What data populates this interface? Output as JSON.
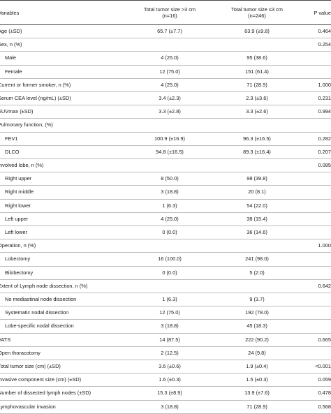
{
  "headers": {
    "variables": "Variables",
    "group1_line1": "Total tumor size >3 cm",
    "group1_line2": "(n=16)",
    "group2_line1": "Total tumor size ≤3 cm",
    "group2_line2": "(n=246)",
    "p_value": "P value"
  },
  "rows": [
    {
      "label": "Age (±SD)",
      "indent": false,
      "g1": "65.7 (±7.7)",
      "g2": "63.9 (±9.8)",
      "p": "0.464"
    },
    {
      "label": "Sex, n (%)",
      "indent": false,
      "g1": "",
      "g2": "",
      "p": "0.254"
    },
    {
      "label": "Male",
      "indent": true,
      "g1": "4 (25.0)",
      "g2": "95 (38.6)",
      "p": ""
    },
    {
      "label": "Female",
      "indent": true,
      "g1": "12 (75.0)",
      "g2": "151 (61.4)",
      "p": ""
    },
    {
      "label": "Current or former smoker, n (%)",
      "indent": false,
      "g1": "4 (25.0)",
      "g2": "71 (28.9)",
      "p": "1.000"
    },
    {
      "label": "Serum CEA level (ng/mL) (±SD)",
      "indent": false,
      "g1": "3.4 (±2.3)",
      "g2": "2.3 (±3.6)",
      "p": "0.231"
    },
    {
      "label": "SUVmax (±SD)",
      "indent": false,
      "g1": "3.3 (±2.8)",
      "g2": "3.3 (±2.6)",
      "p": "0.994"
    },
    {
      "label": "Pulmonary function, (%)",
      "indent": false,
      "g1": "",
      "g2": "",
      "p": ""
    },
    {
      "label": "FEV1",
      "indent": true,
      "g1": "100.9 (±16.9)",
      "g2": "96.3 (±16.5)",
      "p": "0.282"
    },
    {
      "label": "DLCO",
      "indent": true,
      "g1": "94.8 (±16.5)",
      "g2": "89.3 (±16.4)",
      "p": "0.207"
    },
    {
      "label": "Involved lobe, n (%)",
      "indent": false,
      "g1": "",
      "g2": "",
      "p": "0.085"
    },
    {
      "label": "Right upper",
      "indent": true,
      "g1": "8 (50.0)",
      "g2": "98 (39.8)",
      "p": ""
    },
    {
      "label": "Right middle",
      "indent": true,
      "g1": "3 (18.8)",
      "g2": "20 (8.1)",
      "p": ""
    },
    {
      "label": "Right lower",
      "indent": true,
      "g1": "1 (6.3)",
      "g2": "54 (22.0)",
      "p": ""
    },
    {
      "label": "Left upper",
      "indent": true,
      "g1": "4 (25.0)",
      "g2": "38 (15.4)",
      "p": ""
    },
    {
      "label": "Left lower",
      "indent": true,
      "g1": "0 (0.0)",
      "g2": "36 (14.6)",
      "p": ""
    },
    {
      "label": "Operation, n (%)",
      "indent": false,
      "g1": "",
      "g2": "",
      "p": "1.000"
    },
    {
      "label": "Lobectomy",
      "indent": true,
      "g1": "16 (100.0)",
      "g2": "241 (98.0)",
      "p": ""
    },
    {
      "label": "Bilobectomy",
      "indent": true,
      "g1": "0 (0.0)",
      "g2": "5 (2.0)",
      "p": ""
    },
    {
      "label": "Extent of Lymph node dissection, n (%)",
      "indent": false,
      "g1": "",
      "g2": "",
      "p": "0.642"
    },
    {
      "label": "No mediastinal node dissection",
      "indent": true,
      "g1": "1 (6.3)",
      "g2": "9 (3.7)",
      "p": ""
    },
    {
      "label": "Systematic nodal dissection",
      "indent": true,
      "g1": "12 (75.0)",
      "g2": "192 (78.0)",
      "p": ""
    },
    {
      "label": "Lobe-specific nodal dissection",
      "indent": true,
      "g1": "3 (18.8)",
      "g2": "45 (18.3)",
      "p": ""
    },
    {
      "label": "VATS",
      "indent": false,
      "g1": "14 (87.5)",
      "g2": "222 (90.2)",
      "p": "0.665"
    },
    {
      "label": "Open thoracotomy",
      "indent": false,
      "g1": "2 (12.5)",
      "g2": "24 (9.8)",
      "p": ""
    },
    {
      "label": "Total tumor size (cm) (±SD)",
      "indent": false,
      "g1": "3.6 (±0.6)",
      "g2": "1.9 (±0.4)",
      "p": "<0.001"
    },
    {
      "label": "Invasive component size (cm) (±SD)",
      "indent": false,
      "g1": "1.6 (±0.3)",
      "g2": "1.5 (±0.3)",
      "p": "0.059"
    },
    {
      "label": "Number of dissected lymph nodes (±SD)",
      "indent": false,
      "g1": "15.3 (±8.9)",
      "g2": "13.9 (±7.6)",
      "p": "0.478"
    },
    {
      "label": "Lymphovascular invasion",
      "indent": false,
      "g1": "3 (18.8)",
      "g2": "71 (28.9)",
      "p": "0.568"
    }
  ]
}
